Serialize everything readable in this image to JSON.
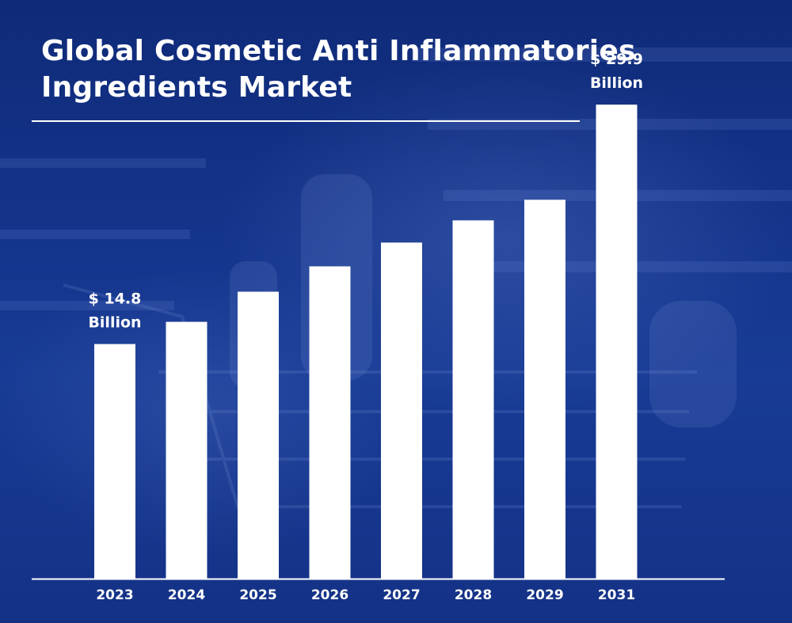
{
  "chart_data": {
    "type": "bar",
    "title_line1": "Global Cosmetic Anti Inflammatories",
    "title_line2": "Ingredients Market",
    "categories": [
      "2023",
      "2024",
      "2025",
      "2026",
      "2027",
      "2028",
      "2029",
      "2031"
    ],
    "values": [
      14.8,
      16.2,
      18.1,
      19.7,
      21.2,
      22.6,
      23.9,
      29.9
    ],
    "unit": "Billion",
    "annotations": [
      {
        "category": "2023",
        "line1": "$ 14.8",
        "line2": "Billion"
      },
      {
        "category": "2031",
        "line1": "$ 29.9",
        "line2": "Billion"
      }
    ],
    "ylim": [
      0,
      36.5
    ],
    "grid": false,
    "colors": {
      "bar": "#ffffff",
      "axis": "#ffffff",
      "text": "#ffffff"
    }
  }
}
